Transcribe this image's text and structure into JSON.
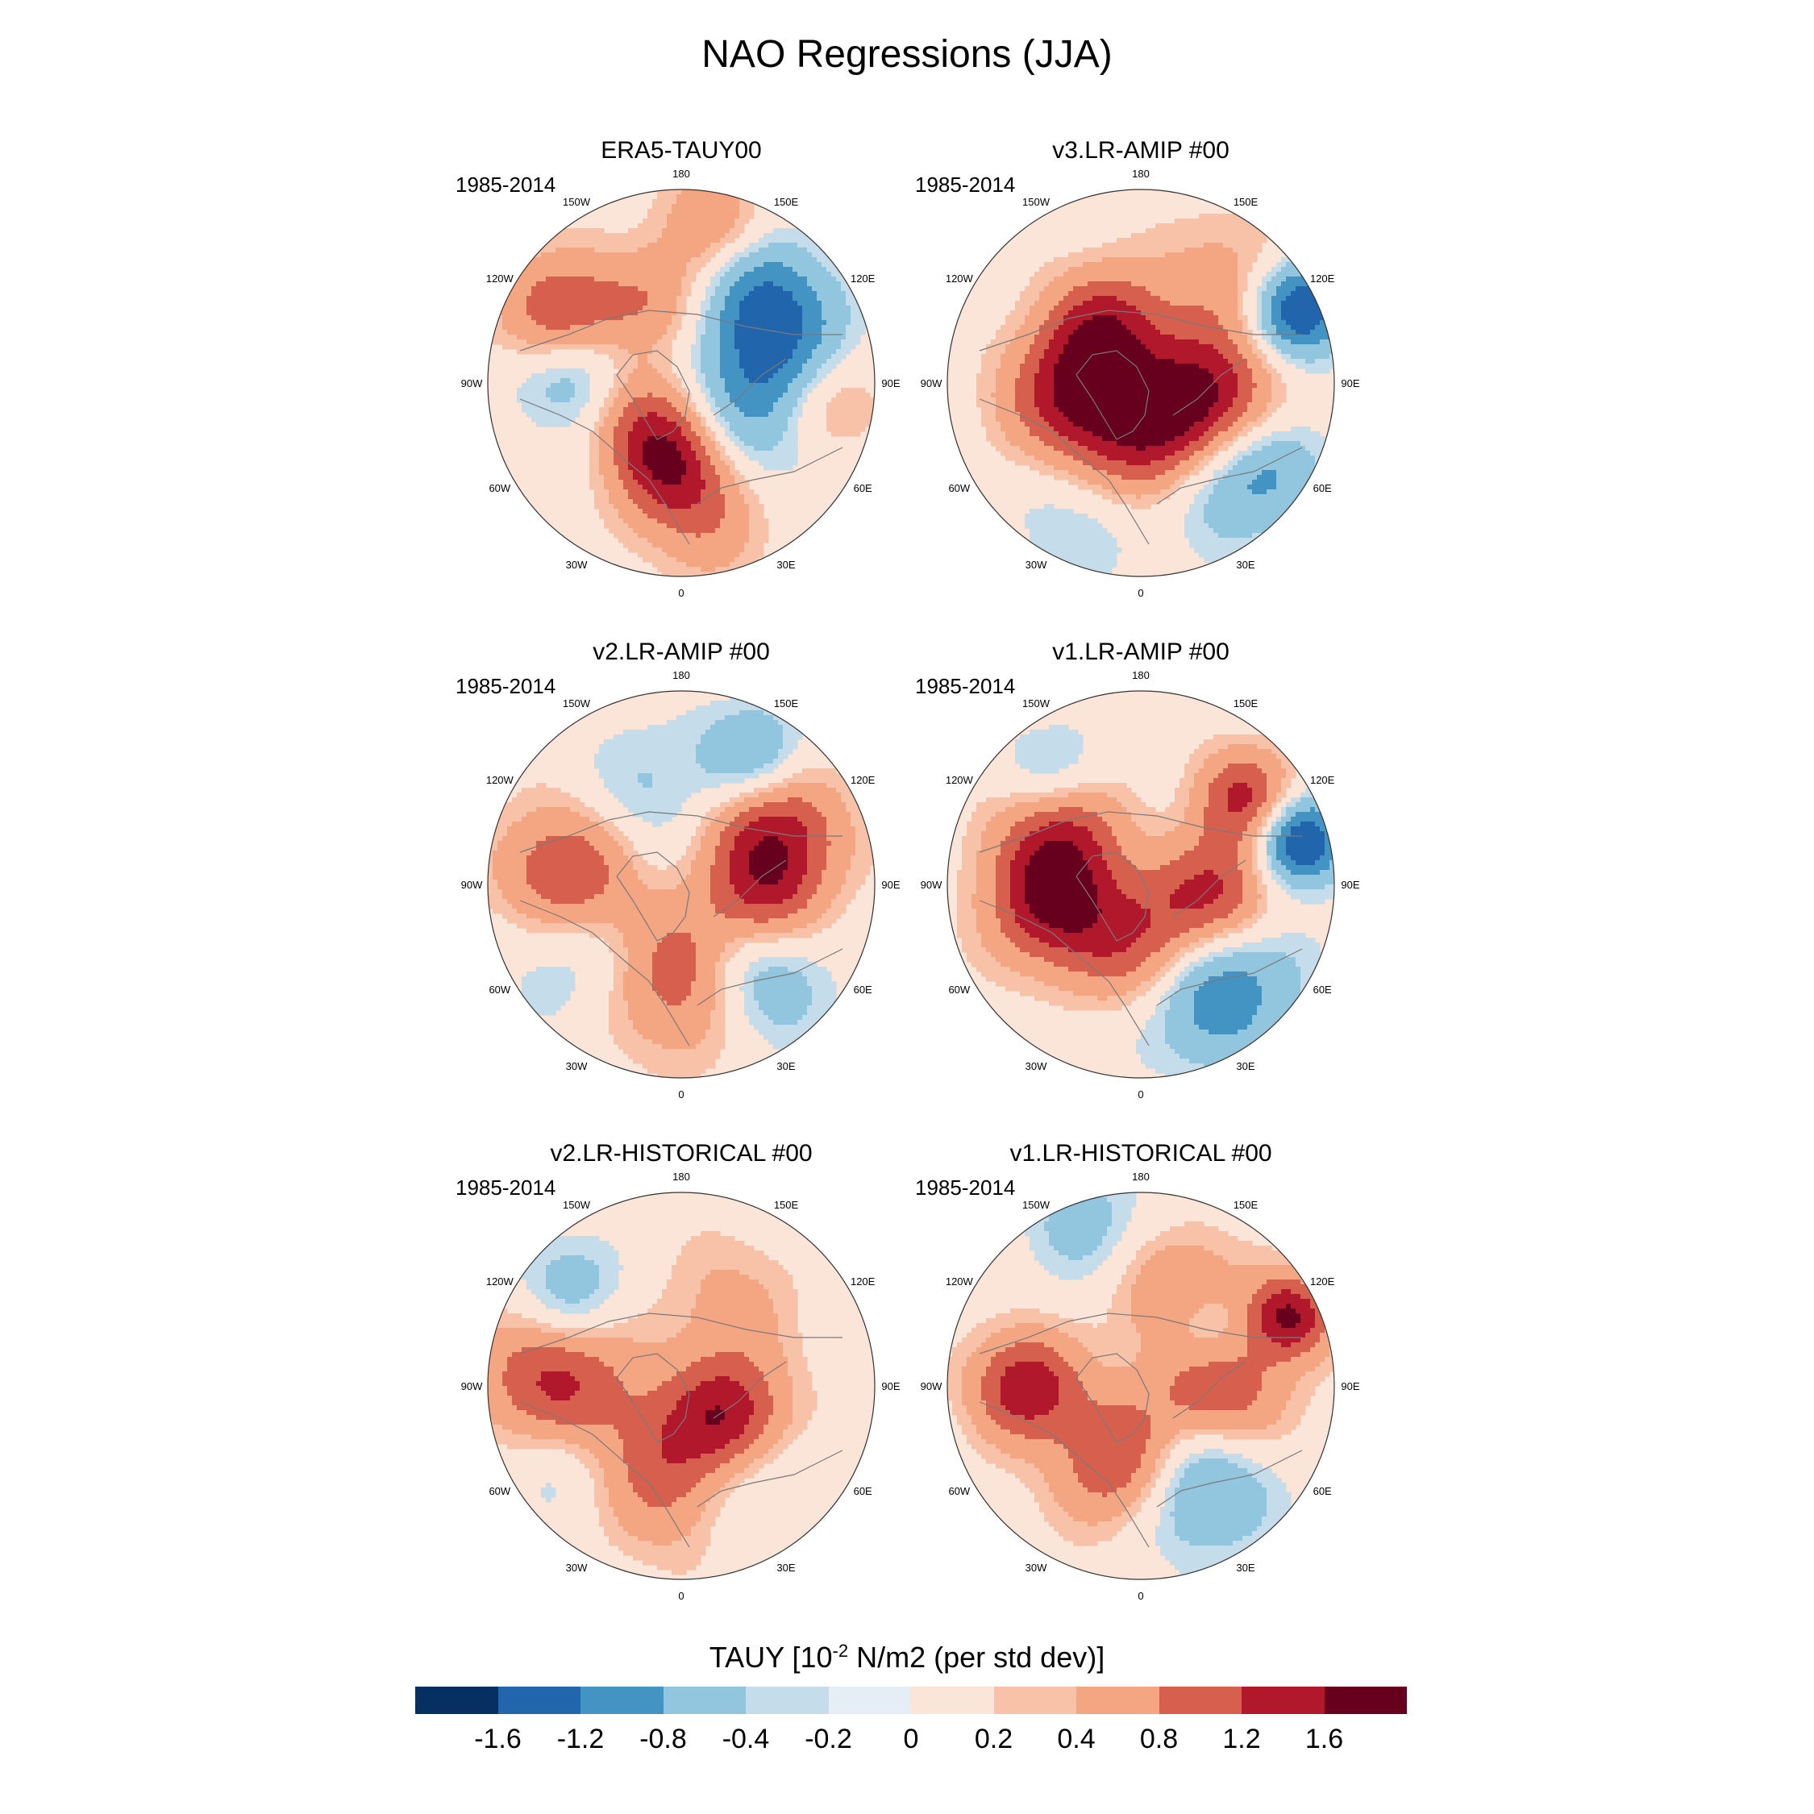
{
  "title": "NAO Regressions (JJA)",
  "longitude_labels": [
    "180",
    "150E",
    "120E",
    "90E",
    "60E",
    "30E",
    "0",
    "30W",
    "60W",
    "90W",
    "120W",
    "150W"
  ],
  "panels": [
    {
      "title": "ERA5-TAUY00",
      "period": "1985-2014",
      "blobs": [
        {
          "lon": 18,
          "r": 0.55,
          "v": 1.7,
          "s": 0.28
        },
        {
          "lon": -10,
          "r": 0.38,
          "v": 1.2,
          "s": 0.2
        },
        {
          "lon": 45,
          "r": 0.45,
          "v": -1.7,
          "s": 0.3
        },
        {
          "lon": 80,
          "r": 0.7,
          "v": 1.0,
          "s": 0.22
        },
        {
          "lon": 110,
          "r": 0.55,
          "v": -1.2,
          "s": 0.25
        },
        {
          "lon": 140,
          "r": 0.65,
          "v": -0.8,
          "s": 0.2
        },
        {
          "lon": -120,
          "r": 0.7,
          "v": 1.3,
          "s": 0.22
        },
        {
          "lon": -95,
          "r": 0.55,
          "v": -1.0,
          "s": 0.2
        },
        {
          "lon": -60,
          "r": 0.25,
          "v": 0.8,
          "s": 0.2
        },
        {
          "lon": 170,
          "r": 0.85,
          "v": 0.7,
          "s": 0.2
        },
        {
          "lon": -160,
          "r": 0.45,
          "v": 0.6,
          "s": 0.2
        }
      ]
    },
    {
      "title": "v3.LR-AMIP  #00",
      "period": "1985-2014",
      "blobs": [
        {
          "lon": 10,
          "r": 0.4,
          "v": 1.6,
          "s": 0.28
        },
        {
          "lon": 35,
          "r": 0.6,
          "v": -1.4,
          "s": 0.25
        },
        {
          "lon": 75,
          "r": 0.35,
          "v": 1.6,
          "s": 0.25
        },
        {
          "lon": 115,
          "r": 0.9,
          "v": -1.7,
          "s": 0.18
        },
        {
          "lon": -80,
          "r": 0.35,
          "v": 1.5,
          "s": 0.25
        },
        {
          "lon": -150,
          "r": 0.35,
          "v": 1.2,
          "s": 0.22
        },
        {
          "lon": -20,
          "r": 0.7,
          "v": -0.7,
          "s": 0.25
        },
        {
          "lon": 140,
          "r": 0.7,
          "v": 0.6,
          "s": 0.25
        },
        {
          "lon": 60,
          "r": 0.8,
          "v": -0.6,
          "s": 0.2
        }
      ]
    },
    {
      "title": "v2.LR-AMIP  #00",
      "period": "1985-2014",
      "blobs": [
        {
          "lon": 12,
          "r": 0.5,
          "v": 1.6,
          "s": 0.28
        },
        {
          "lon": 35,
          "r": 0.6,
          "v": -1.5,
          "s": 0.25
        },
        {
          "lon": 120,
          "r": 0.55,
          "v": 1.5,
          "s": 0.25
        },
        {
          "lon": 150,
          "r": 0.75,
          "v": -1.0,
          "s": 0.2
        },
        {
          "lon": -95,
          "r": 0.6,
          "v": 1.3,
          "s": 0.25
        },
        {
          "lon": -60,
          "r": 0.7,
          "v": -0.5,
          "s": 0.25
        },
        {
          "lon": 80,
          "r": 0.45,
          "v": 0.9,
          "s": 0.2
        },
        {
          "lon": -160,
          "r": 0.5,
          "v": -0.5,
          "s": 0.25
        }
      ]
    },
    {
      "title": "v1.LR-AMIP  #00",
      "period": "1985-2014",
      "blobs": [
        {
          "lon": 10,
          "r": 0.35,
          "v": 1.7,
          "s": 0.25
        },
        {
          "lon": 35,
          "r": 0.55,
          "v": -1.8,
          "s": 0.3
        },
        {
          "lon": 80,
          "r": 0.4,
          "v": 1.6,
          "s": 0.22
        },
        {
          "lon": 105,
          "r": 0.85,
          "v": -1.8,
          "s": 0.16
        },
        {
          "lon": -80,
          "r": 0.45,
          "v": 1.7,
          "s": 0.25
        },
        {
          "lon": -130,
          "r": 0.55,
          "v": 1.3,
          "s": 0.22
        },
        {
          "lon": -140,
          "r": 0.7,
          "v": -1.0,
          "s": 0.2
        },
        {
          "lon": 130,
          "r": 0.7,
          "v": 1.3,
          "s": 0.18
        }
      ]
    },
    {
      "title": "v2.LR-HISTORICAL  #00",
      "period": "1985-2014",
      "blobs": [
        {
          "lon": 0,
          "r": 0.45,
          "v": 1.3,
          "s": 0.28
        },
        {
          "lon": -90,
          "r": 0.65,
          "v": 1.4,
          "s": 0.28
        },
        {
          "lon": 60,
          "r": 0.3,
          "v": 1.4,
          "s": 0.22
        },
        {
          "lon": 30,
          "r": 0.55,
          "v": -0.9,
          "s": 0.25
        },
        {
          "lon": -130,
          "r": 0.75,
          "v": -0.8,
          "s": 0.2
        },
        {
          "lon": -60,
          "r": 0.75,
          "v": -0.6,
          "s": 0.22
        },
        {
          "lon": 150,
          "r": 0.5,
          "v": 0.5,
          "s": 0.25
        }
      ]
    },
    {
      "title": "v1.LR-HISTORICAL  #00",
      "period": "1985-2014",
      "blobs": [
        {
          "lon": -10,
          "r": 0.4,
          "v": 1.7,
          "s": 0.25
        },
        {
          "lon": 30,
          "r": 0.5,
          "v": -1.6,
          "s": 0.28
        },
        {
          "lon": 80,
          "r": 0.4,
          "v": 1.5,
          "s": 0.25
        },
        {
          "lon": 115,
          "r": 0.85,
          "v": 1.6,
          "s": 0.15
        },
        {
          "lon": -90,
          "r": 0.6,
          "v": 1.5,
          "s": 0.2
        },
        {
          "lon": 150,
          "r": 0.5,
          "v": 1.3,
          "s": 0.22
        },
        {
          "lon": 135,
          "r": 0.45,
          "v": -1.2,
          "s": 0.18
        },
        {
          "lon": -160,
          "r": 0.9,
          "v": -0.6,
          "s": 0.2
        }
      ]
    }
  ],
  "colorbar": {
    "title_prefix": "TAUY [10",
    "title_exponent": "-2",
    "title_suffix": " N/m2 (per std dev)]",
    "tick_labels": [
      "-1.6",
      "-1.2",
      "-0.8",
      "-0.4",
      "-0.2",
      "0",
      "0.2",
      "0.4",
      "0.8",
      "1.2",
      "1.6"
    ],
    "levels": [
      -1.6,
      -1.2,
      -0.8,
      -0.4,
      -0.2,
      0,
      0.2,
      0.4,
      0.8,
      1.2,
      1.6
    ],
    "colors": [
      "#053061",
      "#2166ac",
      "#4393c3",
      "#92c5de",
      "#c5ddeb",
      "#e6eef5",
      "#fbe4d8",
      "#f7c2a7",
      "#f4a582",
      "#d6604d",
      "#b2182b",
      "#67001f"
    ]
  }
}
